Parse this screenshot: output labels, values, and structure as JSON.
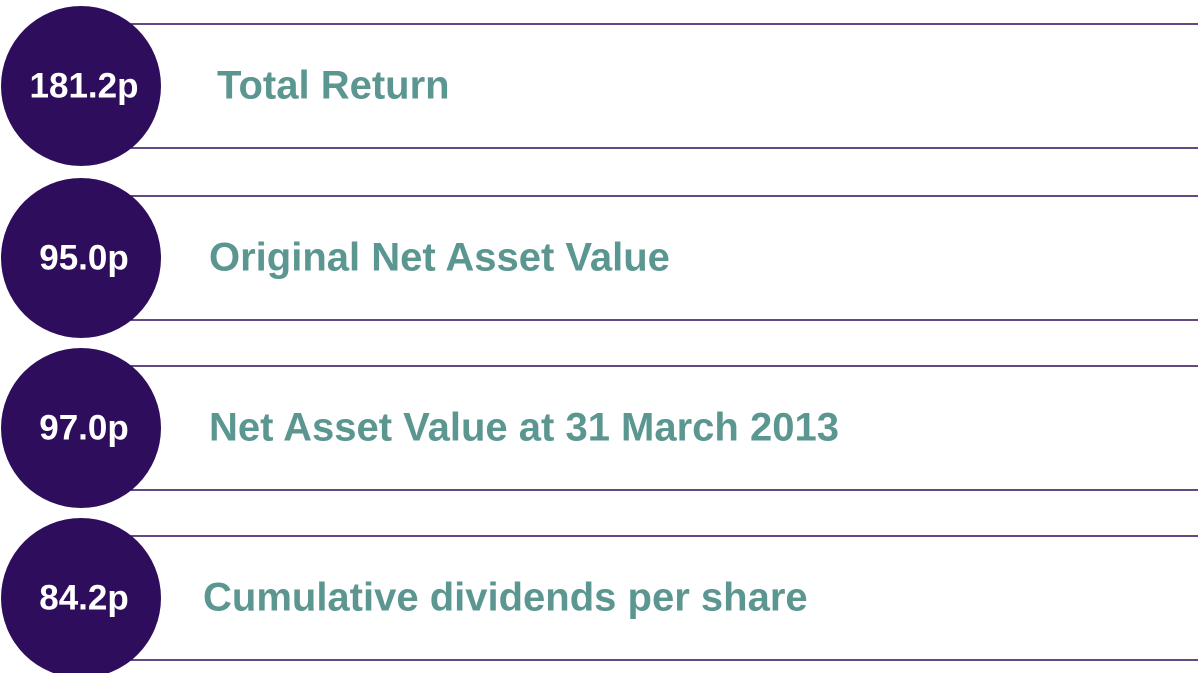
{
  "items": [
    {
      "value": "181.2p",
      "label": "Total Return"
    },
    {
      "value": "95.0p",
      "label": "Original Net Asset Value"
    },
    {
      "value": "97.0p",
      "label": "Net Asset Value at 31 March 2013"
    },
    {
      "value": "84.2p",
      "label": "Cumulative dividends per share"
    }
  ]
}
